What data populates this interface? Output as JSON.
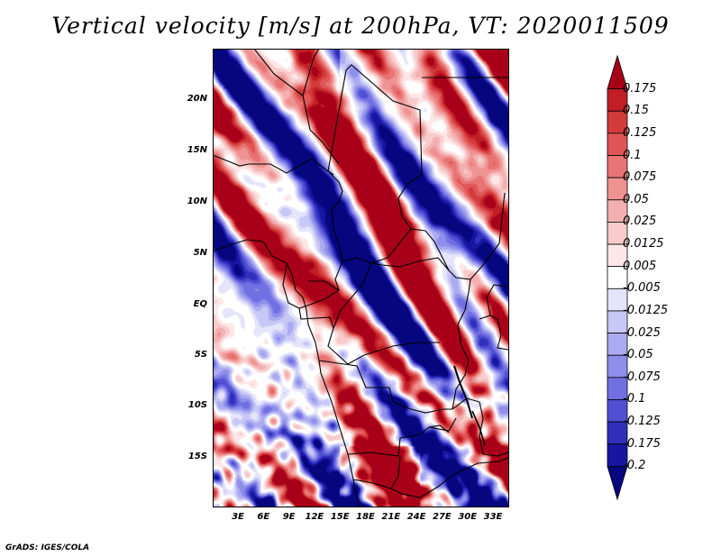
{
  "title": "Vertical velocity [m/s] at 200hPa, VT: 2020011509",
  "credit": "GrADS: IGES/COLA",
  "latitude_labels": [
    "20N",
    "15N",
    "10N",
    "5N",
    "EQ",
    "5S",
    "10S",
    "15S"
  ],
  "longitude_labels": [
    "3E",
    "6E",
    "9E",
    "12E",
    "15E",
    "18E",
    "21E",
    "24E",
    "27E",
    "30E",
    "33E"
  ],
  "colorbar": {
    "labels": [
      "0.175",
      "0.15",
      "0.125",
      "0.1",
      "0.075",
      "0.05",
      "0.025",
      "0.0125",
      "0.005",
      "-0.005",
      "-0.0125",
      "-0.025",
      "-0.05",
      "-0.075",
      "-0.1",
      "-0.125",
      "-0.175",
      "-0.2"
    ],
    "colors": [
      "#a80018",
      "#c21e26",
      "#d33b3b",
      "#e05555",
      "#e87474",
      "#ef9292",
      "#f4b0b0",
      "#f8cccc",
      "#fce6e6",
      "#ffffff",
      "#e4e4fb",
      "#c8c8f6",
      "#ababf1",
      "#8e8eeb",
      "#7070e2",
      "#5050d3",
      "#3030bd",
      "#1616a3",
      "#06067e"
    ]
  }
}
